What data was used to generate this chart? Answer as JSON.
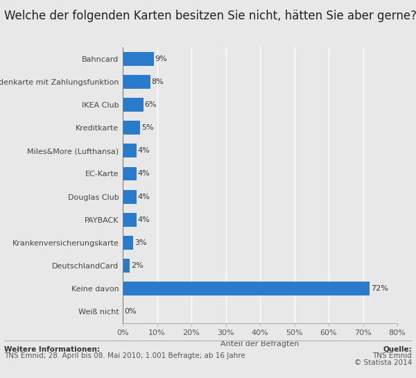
{
  "title": "Welche der folgenden Karten besitzen Sie nicht, hätten Sie aber gerne?",
  "categories": [
    "Weiß nicht",
    "Keine davon",
    "DeutschlandCard",
    "Krankenversicherungskarte",
    "PAYBACK",
    "Douglas Club",
    "EC-Karte",
    "Miles&More (Lufthansa)",
    "Kreditkarte",
    "IKEA Club",
    "Kundenkarte mit Zahlungsfunktion",
    "Bahncard"
  ],
  "values": [
    0,
    72,
    2,
    3,
    4,
    4,
    4,
    4,
    5,
    6,
    8,
    9
  ],
  "bar_color": "#2b7bcc",
  "xlabel": "Anteil der Befragten",
  "xlim": [
    0,
    80
  ],
  "xticks": [
    0,
    10,
    20,
    30,
    40,
    50,
    60,
    70,
    80
  ],
  "xtick_labels": [
    "0%",
    "10%",
    "20%",
    "30%",
    "40%",
    "50%",
    "60%",
    "70%",
    "80%"
  ],
  "background_color": "#e8e8e8",
  "plot_background": "#e8e8e8",
  "grid_color": "#ffffff",
  "footer_left_bold": "Weitere Informationen:",
  "footer_left": "TNS Emnid; 28. April bis 08. Mai 2010; 1.001 Befragte; ab 16 Jahre",
  "footer_right_bold": "Quelle:",
  "footer_right_line2": "TNS Emnid",
  "footer_right_line3": "© Statista 2014",
  "title_fontsize": 12,
  "label_fontsize": 8,
  "value_fontsize": 8,
  "footer_fontsize": 7.5,
  "xlabel_fontsize": 8
}
